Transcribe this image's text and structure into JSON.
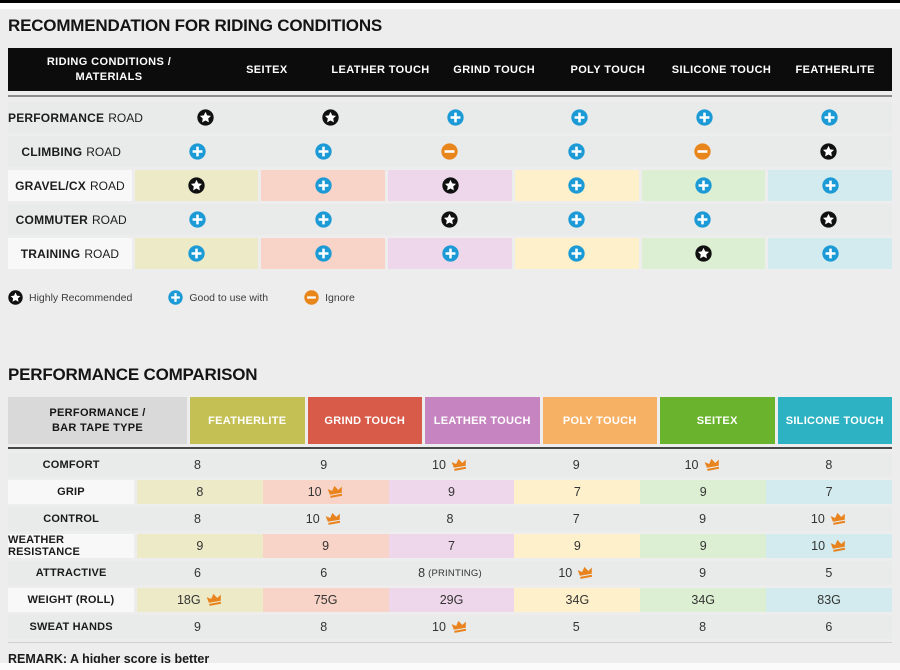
{
  "table1": {
    "title": "RECOMMENDATION FOR RIDING CONDITIONS",
    "header": {
      "label": "RIDING CONDITIONS /\nMATERIALS",
      "columns": [
        "SEITEX",
        "LEATHER TOUCH",
        "GRIND TOUCH",
        "POLY TOUCH",
        "SILICONE TOUCH",
        "FEATHERLITE"
      ]
    },
    "rows": [
      {
        "label_bold": "PERFORMANCE",
        "label_rest": "ROAD",
        "colored": false,
        "cells": [
          "star",
          "star",
          "plus",
          "plus",
          "plus",
          "plus"
        ]
      },
      {
        "label_bold": "CLIMBING",
        "label_rest": "ROAD",
        "colored": false,
        "cells": [
          "plus",
          "plus",
          "minus",
          "plus",
          "minus",
          "star"
        ]
      },
      {
        "label_bold": "GRAVEL/CX",
        "label_rest": "ROAD",
        "colored": true,
        "cells": [
          "star",
          "plus",
          "star",
          "plus",
          "plus",
          "plus"
        ]
      },
      {
        "label_bold": "COMMUTER",
        "label_rest": "ROAD",
        "colored": false,
        "cells": [
          "plus",
          "plus",
          "star",
          "plus",
          "plus",
          "star"
        ]
      },
      {
        "label_bold": "TRAINING",
        "label_rest": "ROAD",
        "colored": true,
        "cells": [
          "plus",
          "plus",
          "plus",
          "plus",
          "star",
          "plus"
        ]
      }
    ],
    "legend": [
      {
        "icon": "star",
        "label": "Highly Recommended"
      },
      {
        "icon": "plus",
        "label": "Good to use with"
      },
      {
        "icon": "minus",
        "label": "Ignore"
      }
    ]
  },
  "table2": {
    "title": "PERFORMANCE COMPARISON",
    "header": {
      "label": "PERFORMANCE /\nBAR TAPE TYPE",
      "columns": [
        {
          "name": "FEATHERLITE",
          "color": "#c5c053"
        },
        {
          "name": "GRIND TOUCH",
          "color": "#d75b48"
        },
        {
          "name": "LEATHER TOUCH",
          "color": "#c685c0"
        },
        {
          "name": "POLY TOUCH",
          "color": "#f6b164"
        },
        {
          "name": "SEITEX",
          "color": "#69b42c"
        },
        {
          "name": "SILICONE TOUCH",
          "color": "#2cb2c2"
        }
      ]
    },
    "rows": [
      {
        "label": "COMFORT",
        "colored": false,
        "cells": [
          {
            "v": "8"
          },
          {
            "v": "9"
          },
          {
            "v": "10",
            "crown": true
          },
          {
            "v": "9"
          },
          {
            "v": "10",
            "crown": true
          },
          {
            "v": "8"
          }
        ]
      },
      {
        "label": "GRIP",
        "colored": true,
        "cells": [
          {
            "v": "8"
          },
          {
            "v": "10",
            "crown": true
          },
          {
            "v": "9"
          },
          {
            "v": "7"
          },
          {
            "v": "9"
          },
          {
            "v": "7"
          }
        ]
      },
      {
        "label": "CONTROL",
        "colored": false,
        "cells": [
          {
            "v": "8"
          },
          {
            "v": "10",
            "crown": true
          },
          {
            "v": "8"
          },
          {
            "v": "7"
          },
          {
            "v": "9"
          },
          {
            "v": "10",
            "crown": true
          }
        ]
      },
      {
        "label": "WEATHER RESISTANCE",
        "colored": true,
        "cells": [
          {
            "v": "9"
          },
          {
            "v": "9"
          },
          {
            "v": "7"
          },
          {
            "v": "9"
          },
          {
            "v": "9"
          },
          {
            "v": "10",
            "crown": true
          }
        ]
      },
      {
        "label": "ATTRACTIVE",
        "colored": false,
        "cells": [
          {
            "v": "6"
          },
          {
            "v": "6"
          },
          {
            "v": "8",
            "suffix": "(PRINTING)"
          },
          {
            "v": "10",
            "crown": true
          },
          {
            "v": "9"
          },
          {
            "v": "5"
          }
        ]
      },
      {
        "label": "WEIGHT (ROLL)",
        "colored": true,
        "cells": [
          {
            "v": "18G",
            "crown": true
          },
          {
            "v": "75G"
          },
          {
            "v": "29G"
          },
          {
            "v": "34G"
          },
          {
            "v": "34G"
          },
          {
            "v": "83G"
          }
        ]
      },
      {
        "label": "SWEAT HANDS",
        "colored": false,
        "cells": [
          {
            "v": "9"
          },
          {
            "v": "8"
          },
          {
            "v": "10",
            "crown": true
          },
          {
            "v": "5"
          },
          {
            "v": "8"
          },
          {
            "v": "6"
          }
        ]
      }
    ],
    "remark": "REMARK: A higher score is better"
  },
  "colors": {
    "page_bg": "#ededed",
    "header_black": "#0c0c0c",
    "row_gray": "#e9eaea",
    "row_white": "#f8f8f8",
    "pale_columns": [
      "#edeac7",
      "#f8d3c7",
      "#efd7eb",
      "#fdf0ca",
      "#dcefd2",
      "#d3ebee"
    ],
    "icon_star": "#101010",
    "icon_plus": "#1b9ad6",
    "icon_minus": "#e8861c",
    "crown": "#e8831d"
  }
}
